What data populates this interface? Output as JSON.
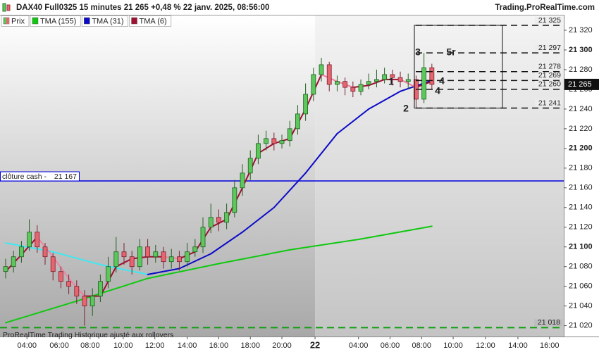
{
  "chart_data": {
    "type": "candlestick",
    "title": "DAX40 Full0325 15 minutes 21 265 +0,48 % 22 janv. 2025, 08:56:00",
    "source": "Trading.ProRealTime.com",
    "footer": "ProRealTime Trading Historique ajusté aux rollovers",
    "up_color": "#5cc85c",
    "down_color": "#e8646e",
    "open": [
      21075,
      21080,
      21090,
      21100,
      21115,
      21100,
      21090,
      21075,
      21065,
      21060,
      21050,
      21040,
      21050,
      21065,
      21080,
      21095,
      21090,
      21080,
      21100,
      21090,
      21095,
      21085,
      21090,
      21085,
      21095,
      21100,
      21120,
      21130,
      21125,
      21135,
      21160,
      21175,
      21190,
      21205,
      21210,
      21205,
      21208,
      21220,
      21235,
      21255,
      21275,
      21285,
      21265,
      21268,
      21262,
      21258,
      21265,
      21268,
      21270,
      21275,
      21272,
      21268,
      21270,
      21250,
      21282
    ],
    "high": [
      21088,
      21096,
      21106,
      21128,
      21122,
      21104,
      21094,
      21080,
      21072,
      21066,
      21056,
      21058,
      21072,
      21090,
      21110,
      21104,
      21096,
      21108,
      21108,
      21102,
      21100,
      21098,
      21096,
      21104,
      21108,
      21130,
      21144,
      21138,
      21144,
      21168,
      21184,
      21198,
      21214,
      21218,
      21216,
      21214,
      21228,
      21244,
      21266,
      21282,
      21292,
      21288,
      21274,
      21272,
      21268,
      21270,
      21276,
      21280,
      21282,
      21280,
      21278,
      21276,
      21274,
      21297,
      21286
    ],
    "low": [
      21068,
      21074,
      21084,
      21096,
      21094,
      21082,
      21066,
      21058,
      21052,
      21042,
      21020,
      21030,
      21044,
      21058,
      21074,
      21082,
      21072,
      21076,
      21082,
      21084,
      21078,
      21078,
      21076,
      21080,
      21090,
      21094,
      21114,
      21116,
      21118,
      21130,
      21152,
      21168,
      21184,
      21198,
      21198,
      21200,
      21202,
      21214,
      21228,
      21248,
      21268,
      21258,
      21258,
      21254,
      21252,
      21254,
      21260,
      21262,
      21266,
      21264,
      21262,
      21260,
      21241,
      21246,
      21260
    ],
    "close": [
      21080,
      21090,
      21100,
      21115,
      21100,
      21090,
      21075,
      21065,
      21060,
      21050,
      21040,
      21050,
      21065,
      21080,
      21095,
      21090,
      21080,
      21100,
      21090,
      21095,
      21085,
      21090,
      21085,
      21095,
      21100,
      21120,
      21130,
      21125,
      21135,
      21160,
      21175,
      21190,
      21205,
      21210,
      21205,
      21208,
      21220,
      21235,
      21255,
      21275,
      21285,
      21265,
      21268,
      21262,
      21258,
      21265,
      21268,
      21270,
      21275,
      21272,
      21268,
      21270,
      21250,
      21282,
      21265
    ],
    "price_name": "Prix",
    "series": [
      {
        "name": "TMA (155)",
        "color": "#10c810",
        "x": [
          0,
          9,
          18,
          27,
          36,
          45,
          54
        ],
        "values": [
          21023,
          21045,
          21068,
          21083,
          21097,
          21108,
          21121
        ]
      },
      {
        "name": "TMA (31)",
        "color": "#0a0ac8",
        "up_color": "#0a0ac8",
        "down_color": "#40e8f0",
        "x": [
          0,
          6,
          12,
          18,
          22,
          26,
          30,
          34,
          38,
          42,
          46,
          50,
          54
        ],
        "values": [
          21104,
          21095,
          21082,
          21072,
          21078,
          21093,
          21115,
          21140,
          21175,
          21215,
          21240,
          21258,
          21269
        ]
      },
      {
        "name": "TMA (6)",
        "color": "#a01030",
        "up_color": "#a01030",
        "down_color": "#f080a0",
        "x": [
          0,
          2,
          4,
          6,
          8,
          10,
          12,
          14,
          16,
          18,
          20,
          22,
          24,
          26,
          28,
          30,
          32,
          34,
          36,
          38,
          40,
          42,
          44,
          46,
          48,
          50,
          52,
          54
        ],
        "values": [
          21075,
          21092,
          21110,
          21090,
          21068,
          21050,
          21050,
          21080,
          21088,
          21090,
          21090,
          21088,
          21095,
          21120,
          21128,
          21160,
          21195,
          21205,
          21210,
          21240,
          21275,
          21268,
          21262,
          21264,
          21270,
          21270,
          21262,
          21268
        ]
      }
    ],
    "xlim": [
      -0.714,
      70.71
    ],
    "xticks": [
      {
        "value": 2.7,
        "label": "04:00"
      },
      {
        "value": 6.8,
        "label": "06:00"
      },
      {
        "value": 10.7,
        "label": "08:00"
      },
      {
        "value": 14.9,
        "label": "10:00"
      },
      {
        "value": 18.9,
        "label": "12:00"
      },
      {
        "value": 23.0,
        "label": "14:00"
      },
      {
        "value": 27.0,
        "label": "16:00"
      },
      {
        "value": 31.0,
        "label": "18:00"
      },
      {
        "value": 35.0,
        "label": "20:00"
      },
      {
        "value": 39.2,
        "label": "22",
        "bold": true
      },
      {
        "value": 44.7,
        "label": "04:00"
      },
      {
        "value": 48.7,
        "label": "06:00"
      },
      {
        "value": 52.7,
        "label": "08:00"
      },
      {
        "value": 56.7,
        "label": "10:00"
      },
      {
        "value": 60.8,
        "label": "12:00"
      },
      {
        "value": 64.9,
        "label": "14:00"
      },
      {
        "value": 68.9,
        "label": "16:00"
      }
    ],
    "ylim": [
      21009,
      21335
    ],
    "yticks": [
      {
        "value": 21020,
        "label": "21 020"
      },
      {
        "value": 21040,
        "label": "21 040"
      },
      {
        "value": 21060,
        "label": "21 060"
      },
      {
        "value": 21080,
        "label": "21 080"
      },
      {
        "value": 21100,
        "label": "21 100",
        "bold": true
      },
      {
        "value": 21120,
        "label": "21 120"
      },
      {
        "value": 21140,
        "label": "21 140"
      },
      {
        "value": 21160,
        "label": "21 160"
      },
      {
        "value": 21180,
        "label": "21 180"
      },
      {
        "value": 21200,
        "label": "21 200",
        "bold": true
      },
      {
        "value": 21220,
        "label": "21 220"
      },
      {
        "value": 21240,
        "label": "21 240"
      },
      {
        "value": 21260,
        "label": "21 260"
      },
      {
        "value": 21280,
        "label": "21 280"
      },
      {
        "value": 21300,
        "label": "21 300",
        "bold": true
      },
      {
        "value": 21320,
        "label": "21 320"
      }
    ],
    "levels": [
      {
        "value": 21325,
        "label": "21 325"
      },
      {
        "value": 21297,
        "label": "21 297"
      },
      {
        "value": 21278,
        "label": "21 278"
      },
      {
        "value": 21269,
        "label": "21 269"
      },
      {
        "value": 21260,
        "label": "21 260"
      },
      {
        "value": 21241,
        "label": "21 241"
      }
    ],
    "low_level": {
      "value": 21018,
      "label": "21 018",
      "color": "#10a010"
    },
    "cash_close": {
      "text": "clôture cash -",
      "value": 21167,
      "label": "21 167",
      "color": "#0000e0"
    },
    "last_price": {
      "value": 21265,
      "label": "21 265"
    },
    "annotations": [
      "3",
      "5r",
      "1",
      "4",
      "4",
      "2"
    ]
  }
}
